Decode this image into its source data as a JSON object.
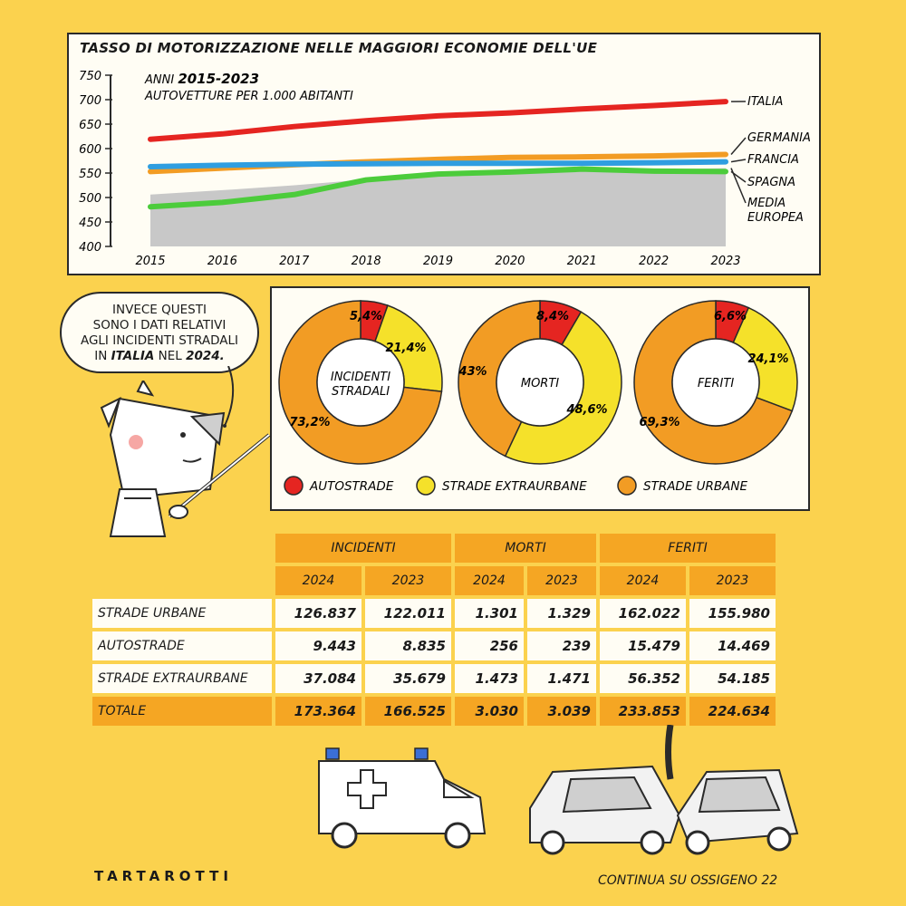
{
  "chart_data": [
    {
      "type": "line",
      "title": "TASSO DI MOTORIZZAZIONE NELLE MAGGIORI ECONOMIE DELL'UE",
      "subtitle_years_prefix": "ANNI",
      "subtitle_years": "2015-2023",
      "subtitle_units": "AUTOVETTURE PER 1.000 ABITANTI",
      "x": [
        "2015",
        "2016",
        "2017",
        "2018",
        "2019",
        "2020",
        "2021",
        "2022",
        "2023"
      ],
      "y_ticks": [
        "750",
        "700",
        "650",
        "600",
        "550",
        "500",
        "450",
        "400"
      ],
      "ylim": [
        400,
        750
      ],
      "grid": false,
      "series": [
        {
          "name": "ITALIA",
          "color": "#e52521",
          "values": [
            619,
            630,
            645,
            657,
            667,
            673,
            681,
            688,
            696
          ]
        },
        {
          "name": "GERMANIA",
          "color": "#f29c24",
          "values": [
            553,
            560,
            567,
            573,
            578,
            582,
            583,
            585,
            588
          ]
        },
        {
          "name": "FRANCIA",
          "color": "#2f9ee0",
          "values": [
            563,
            566,
            568,
            569,
            570,
            570,
            570,
            571,
            573
          ]
        },
        {
          "name": "SPAGNA",
          "color": "#4ccc3b",
          "values": [
            481,
            490,
            506,
            536,
            548,
            552,
            558,
            554,
            553
          ]
        },
        {
          "name": "MEDIA EUROPEA",
          "color": "#c8c8c8",
          "area": true,
          "values": [
            506,
            515,
            525,
            537,
            548,
            551,
            553,
            557,
            560
          ]
        }
      ]
    },
    {
      "type": "pie",
      "title": "INCIDENTI STRADALI",
      "labels": [
        "AUTOSTRADE",
        "STRADE EXTRAURBANE",
        "STRADE URBANE"
      ],
      "values": [
        5.4,
        21.4,
        73.2
      ],
      "value_labels": [
        "5,4%",
        "21,4%",
        "73,2%"
      ]
    },
    {
      "type": "pie",
      "title": "MORTI",
      "labels": [
        "AUTOSTRADE",
        "STRADE EXTRAURBANE",
        "STRADE URBANE"
      ],
      "values": [
        8.4,
        48.6,
        43
      ],
      "value_labels": [
        "8,4%",
        "48,6%",
        "43%"
      ]
    },
    {
      "type": "pie",
      "title": "FERITI",
      "labels": [
        "AUTOSTRADE",
        "STRADE EXTRAURBANE",
        "STRADE URBANE"
      ],
      "values": [
        6.6,
        24.1,
        69.3
      ],
      "value_labels": [
        "6,6%",
        "24,1%",
        "69,3%"
      ]
    },
    {
      "type": "table",
      "groups": [
        "INCIDENTI",
        "MORTI",
        "FERITI"
      ],
      "years": [
        "2024",
        "2023",
        "2024",
        "2023",
        "2024",
        "2023"
      ],
      "rows": [
        {
          "label": "STRADE URBANE",
          "values": [
            "126.837",
            "122.011",
            "1.301",
            "1.329",
            "162.022",
            "155.980"
          ]
        },
        {
          "label": "AUTOSTRADE",
          "values": [
            "9.443",
            "8.835",
            "256",
            "239",
            "15.479",
            "14.469"
          ]
        },
        {
          "label": "STRADE EXTRAURBANE",
          "values": [
            "37.084",
            "35.679",
            "1.473",
            "1.471",
            "56.352",
            "54.185"
          ]
        },
        {
          "label": "TOTALE",
          "values": [
            "173.364",
            "166.525",
            "3.030",
            "3.039",
            "233.853",
            "224.634"
          ]
        }
      ]
    }
  ],
  "donut_legend": [
    {
      "label": "AUTOSTRADE",
      "color": "#e52521"
    },
    {
      "label": "STRADE EXTRAURBANE",
      "color": "#f5e12a"
    },
    {
      "label": "STRADE URBANE",
      "color": "#f29c24"
    }
  ],
  "donut_colors": [
    "#e52521",
    "#f5e12a",
    "#f29c24"
  ],
  "speech": {
    "line1": "INVECE QUESTI",
    "line2": "SONO I DATI RELATIVI",
    "line3": "AGLI INCIDENTI STRADALI",
    "line4_pre": "IN",
    "line4_bold1": "ITALIA",
    "line4_mid": "NEL",
    "line4_bold2": "2024."
  },
  "signature": "TARTAROTTI",
  "footer": {
    "text": "CONTINUA SU OSSIGENO 22"
  }
}
